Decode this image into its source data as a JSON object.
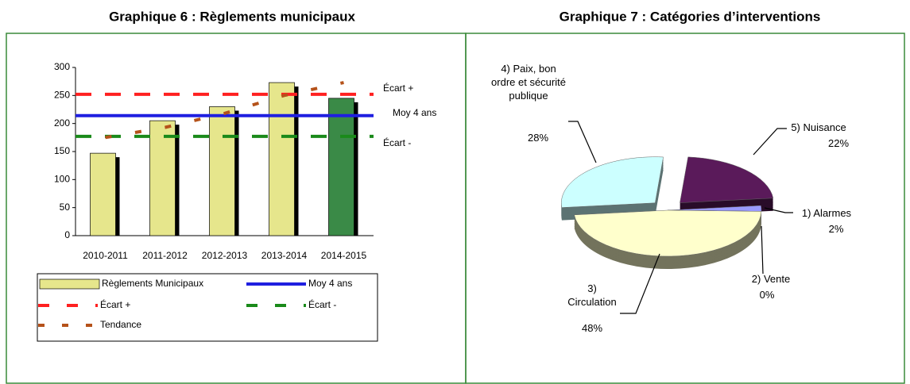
{
  "chart_data": [
    {
      "type": "bar",
      "title": "Graphique 6 : Règlements municipaux",
      "categories": [
        "2010-2011",
        "2011-2012",
        "2012-2013",
        "2013-2014",
        "2014-2015"
      ],
      "series": [
        {
          "name": "Règlements Municipaux",
          "colors": [
            "#e6e68c",
            "#e6e68c",
            "#e6e68c",
            "#e6e68c",
            "#3a8a47"
          ],
          "values": [
            147,
            205,
            230,
            273,
            245
          ]
        },
        {
          "name": "Moy 4 ans",
          "color": "#1f1fe0",
          "value": 214
        },
        {
          "name": "Écart +",
          "color": "#ff2020",
          "value": 252
        },
        {
          "name": "Écart -",
          "color": "#1a8a1a",
          "value": 177
        },
        {
          "name": "Tendance",
          "color": "#b5521a",
          "values": [
            175,
            193,
            218,
            250,
            273
          ]
        }
      ],
      "annotations": [
        "Écart +",
        "Moy 4 ans",
        "Écart -"
      ],
      "ylim": [
        0,
        300
      ],
      "yticks": [
        0,
        50,
        100,
        150,
        200,
        250,
        300
      ]
    },
    {
      "type": "pie",
      "title": "Graphique 7 : Catégories d’interventions",
      "categories": [
        "5) Nuisance",
        "1) Alarmes",
        "2) Vente",
        "3) Circulation",
        "4) Paix, bon ordre et sécurité publique"
      ],
      "values": [
        22,
        2,
        0,
        48,
        28
      ],
      "value_labels": [
        "22%",
        "2%",
        "0%",
        "48%",
        "28%"
      ],
      "colors": [
        "#5a1a5a",
        "#9999ff",
        "#999999",
        "#ffffcc",
        "#ccffff"
      ]
    }
  ]
}
